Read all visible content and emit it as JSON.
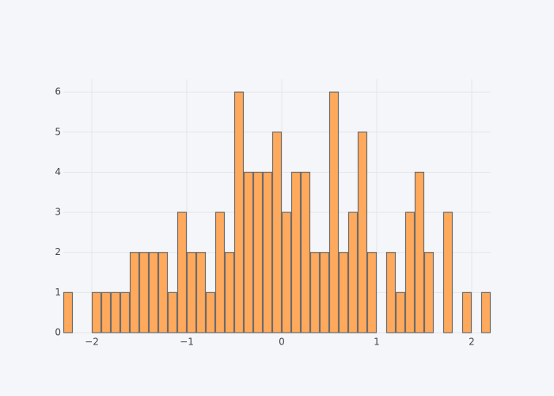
{
  "chart_data": {
    "type": "histogram",
    "bins": [
      -2.3,
      -2.2,
      -2.1,
      -2.0,
      -1.9,
      -1.8,
      -1.7,
      -1.6,
      -1.5,
      -1.4,
      -1.3,
      -1.2,
      -1.1,
      -1.0,
      -0.9,
      -0.8,
      -0.7,
      -0.6,
      -0.5,
      -0.4,
      -0.3,
      -0.2,
      -0.1,
      0.0,
      0.1,
      0.2,
      0.3,
      0.4,
      0.5,
      0.6,
      0.7,
      0.8,
      0.9,
      1.0,
      1.1,
      1.2,
      1.3,
      1.4,
      1.5,
      1.6,
      1.7,
      1.8,
      1.9,
      2.0,
      2.1,
      2.2
    ],
    "values": [
      1,
      0,
      0,
      1,
      1,
      1,
      1,
      2,
      2,
      2,
      2,
      1,
      3,
      2,
      2,
      1,
      3,
      2,
      6,
      4,
      4,
      4,
      5,
      3,
      4,
      4,
      2,
      2,
      6,
      2,
      3,
      5,
      2,
      0,
      2,
      1,
      3,
      4,
      2,
      0,
      3,
      0,
      1,
      0,
      1
    ],
    "color": "#ffa95c",
    "edge_color": "#6b6b6b",
    "xlim": [
      -2.3,
      2.2
    ],
    "xticks": [
      {
        "value": -2,
        "label": "−2"
      },
      {
        "value": -1,
        "label": "−1"
      },
      0,
      1,
      2
    ],
    "ylim": [
      0,
      6.32
    ],
    "yticks": [
      0,
      1,
      2,
      3,
      4,
      5,
      6
    ],
    "grid": true
  }
}
